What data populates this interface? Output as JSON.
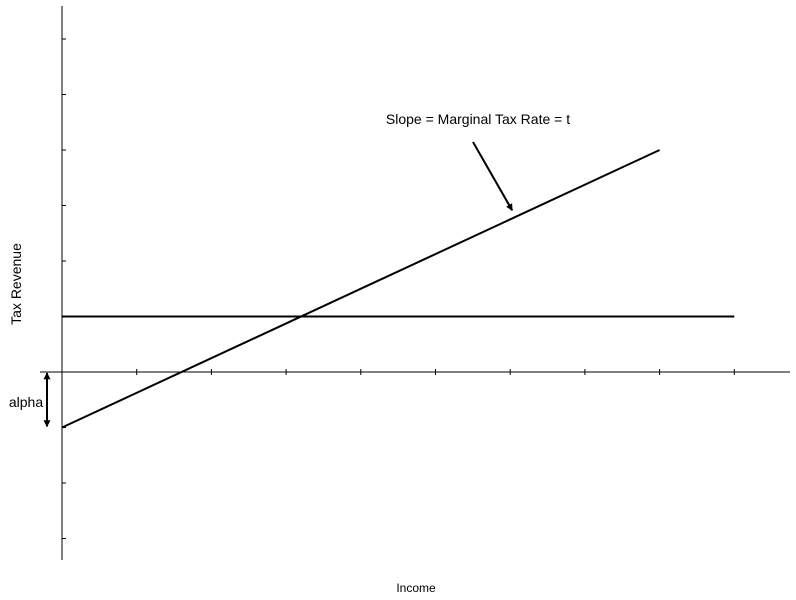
{
  "chart_data": {
    "type": "line",
    "title": "",
    "xlabel": "Income",
    "ylabel": "Tax Revenue",
    "xlim": [
      0,
      9
    ],
    "ylim": [
      -3,
      6.5
    ],
    "x_ticks": [
      1,
      2,
      3,
      4,
      5,
      6,
      7,
      8,
      9
    ],
    "y_ticks": [
      -3,
      -2,
      -1,
      1,
      2,
      3,
      4,
      5,
      6
    ],
    "tick_labels_shown": false,
    "grid": false,
    "legend": "none",
    "series": [
      {
        "values": [
          [
            0,
            -1
          ],
          [
            8,
            4
          ]
        ],
        "color": "#000000"
      },
      {
        "values": [
          [
            0,
            1
          ],
          [
            9,
            1
          ]
        ],
        "color": "#000000"
      }
    ],
    "annotations": [
      {
        "id": "slope",
        "text": "Slope = Marginal Tax Rate = t",
        "arrow_to": [
          6,
          3.2
        ]
      },
      {
        "id": "alpha",
        "text": "alpha",
        "span_y": [
          -1,
          0
        ]
      }
    ]
  }
}
